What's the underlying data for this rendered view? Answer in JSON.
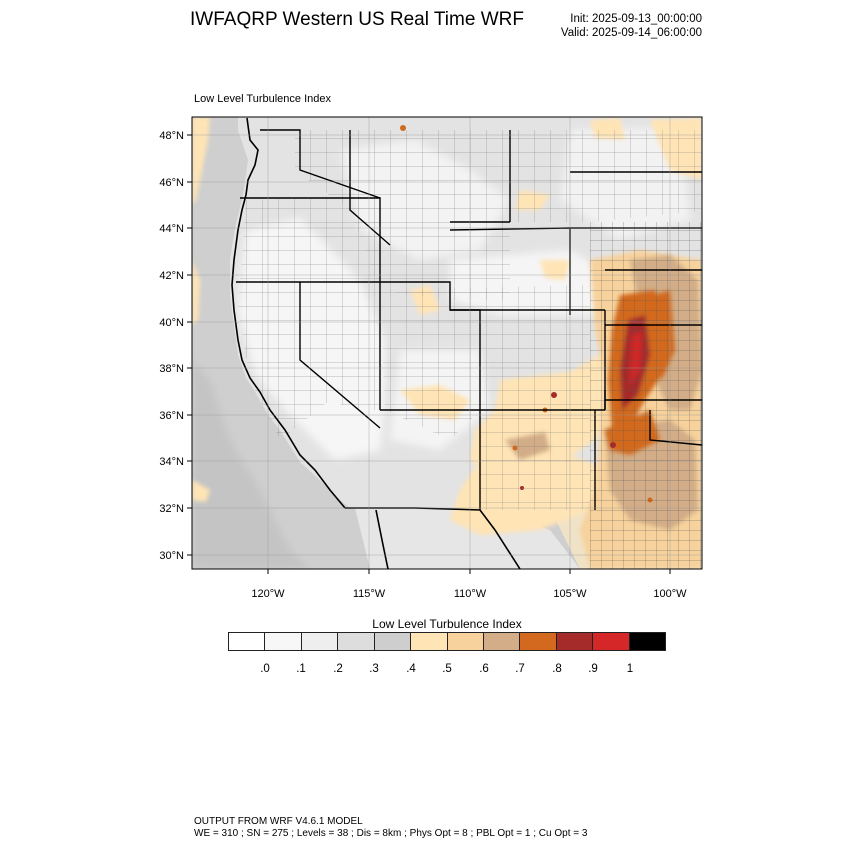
{
  "header": {
    "title": "IWFAQRP Western US Real Time WRF",
    "init": "Init: 2025-09-13_00:00:00",
    "valid": "Valid: 2025-09-14_06:00:00"
  },
  "map": {
    "subtitle": "Low Level Turbulence Index",
    "lat_labels": [
      "48°N",
      "46°N",
      "44°N",
      "42°N",
      "40°N",
      "38°N",
      "36°N",
      "34°N",
      "32°N",
      "30°N"
    ],
    "lon_labels": [
      "120°W",
      "115°W",
      "110°W",
      "105°W",
      "100°W"
    ],
    "extent": {
      "lon": [
        -123.6,
        -98.2
      ],
      "lat": [
        29.4,
        48.8
      ]
    },
    "land_color": "#e3e3e3",
    "ocean_color": "#cfcfcf"
  },
  "colorbar": {
    "title": "Low Level Turbulence Index",
    "labels": [
      ".0",
      ".1",
      ".2",
      ".3",
      ".4",
      ".5",
      ".6",
      ".7",
      ".8",
      ".9",
      "1"
    ],
    "colors": [
      "#ffffff",
      "#f7f7f7",
      "#eeeeee",
      "#dddddd",
      "#cecece",
      "#ffe4b5",
      "#f7d29c",
      "#d2ad87",
      "#d2691e",
      "#a52a2a",
      "#d62728",
      "#000000"
    ]
  },
  "footer": {
    "line1": "OUTPUT FROM WRF V4.6.1 MODEL",
    "line2": "WE = 310 ; SN = 275 ; Levels = 38 ; Dis = 8km ; Phys Opt = 8 ; PBL Opt = 1 ; Cu Opt = 3"
  }
}
